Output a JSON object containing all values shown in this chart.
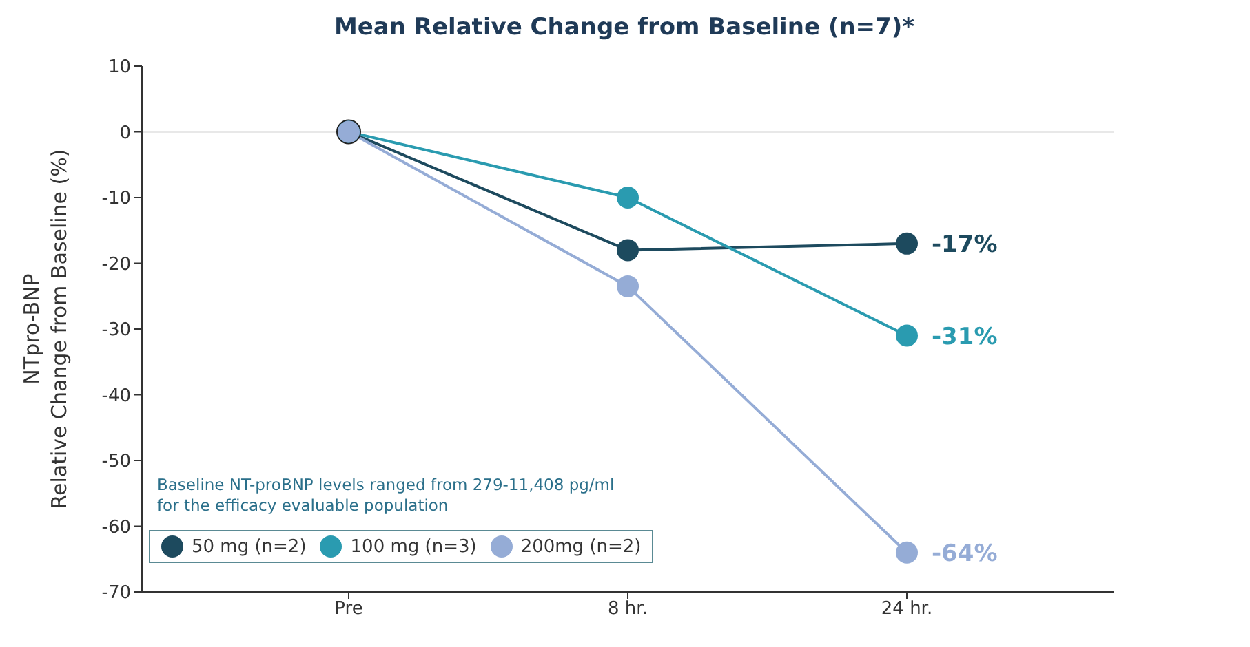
{
  "chart_data": {
    "type": "line",
    "title": "Mean Relative Change from Baseline (n=7)*",
    "ylabel": "NTpro-BNP\nRelative  Change from  Baseline (%)",
    "categories": [
      "Pre",
      "8 hr.",
      "24 hr."
    ],
    "series": [
      {
        "name": "50 mg (n=2)",
        "color": "#1d4a5e",
        "values": [
          0,
          -18,
          -17
        ],
        "value_labels": [
          null,
          null,
          "-17%"
        ]
      },
      {
        "name": "100 mg (n=3)",
        "color": "#2a9bb0",
        "values": [
          0,
          -10,
          -31
        ],
        "value_labels": [
          null,
          null,
          "-31%"
        ]
      },
      {
        "name": "200mg (n=2)",
        "color": "#95acd6",
        "values": [
          0,
          -23.5,
          -64
        ],
        "value_labels": [
          null,
          null,
          "-64%"
        ]
      },
      {
        "type": "scatter",
        "color": "#222222",
        "values": [
          0,
          null,
          null
        ]
      }
    ],
    "ylim": [
      -70,
      10
    ],
    "yticks": [
      10,
      0,
      -10,
      -20,
      -30,
      -40,
      -50,
      -60,
      -70
    ],
    "grid": false,
    "marker": "circle",
    "legend": "bottom left",
    "ref_lines": [
      {
        "axis": "y",
        "value": 0,
        "color": "#e8e8e8"
      }
    ],
    "annotations": [
      "Baseline NT-proBNP levels ranged from 279-11,408 pg/ml\nfor the efficacy evaluable population"
    ]
  }
}
